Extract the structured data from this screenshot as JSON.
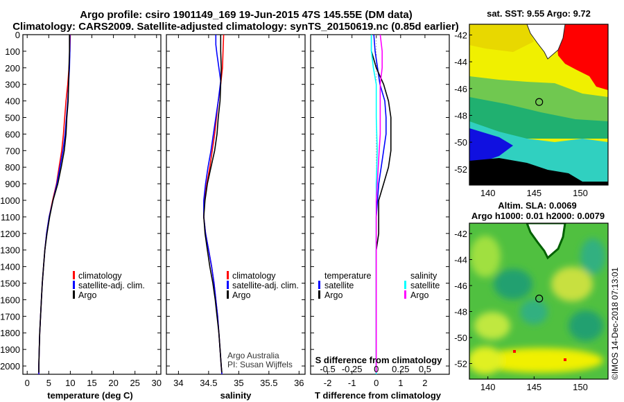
{
  "header": {
    "title_line1": "Argo profile: csiro 1901149_169 19-Jun-2015 47S 145.55E (DM data)",
    "title_line2": "Climatology: CARS2009. Satellite-adjusted climatology: synTS_20150619.nc (0.85d earlier)"
  },
  "map_top": {
    "title": "sat. SST: 9.55 Argo: 9.72",
    "xticks": [
      140,
      145,
      150
    ],
    "yticks": [
      -42,
      -44,
      -46,
      -48,
      -50,
      -52
    ],
    "xlim": [
      138,
      153
    ],
    "ylim": [
      -53.2,
      -41.2
    ],
    "marker": {
      "lon": 145.55,
      "lat": -47
    }
  },
  "map_bottom": {
    "title1": "Altim. SLA: 0.0069",
    "title2": "Argo h1000: 0.01 h2000: 0.0079",
    "xticks": [
      140,
      145,
      150
    ],
    "yticks": [
      -42,
      -44,
      -46,
      -48,
      -50,
      -52
    ],
    "xlim": [
      138,
      153
    ],
    "ylim": [
      -53.2,
      -41.2
    ],
    "marker": {
      "lon": 145.55,
      "lat": -47
    }
  },
  "credit": {
    "line1": "Argo Australia",
    "line2": "PI: Susan Wijffels",
    "watermark": "©IMOS 14-Dec-2018 07:13:01"
  },
  "colors": {
    "climatology": "#ff0000",
    "satellite": "#0000ff",
    "argo": "#000000",
    "sal_satellite": "#00ffff",
    "sal_argo": "#ff00ff"
  },
  "chart_data": [
    {
      "type": "line",
      "xlabel": "temperature (deg C)",
      "ylabel": "",
      "xlim": [
        -1,
        31
      ],
      "ylim": [
        2050,
        0
      ],
      "xticks": [
        0,
        5,
        10,
        15,
        20,
        25,
        30
      ],
      "yticks": [
        0,
        100,
        200,
        300,
        400,
        500,
        600,
        700,
        800,
        900,
        1000,
        1100,
        1200,
        1300,
        1400,
        1500,
        1600,
        1700,
        1800,
        1900,
        2000
      ],
      "legend": [
        "climatology",
        "satellite-adj. clim.",
        "Argo"
      ],
      "series": [
        {
          "name": "climatology",
          "color": "#ff0000",
          "points": [
            [
              10.0,
              0
            ],
            [
              9.9,
              100
            ],
            [
              9.7,
              200
            ],
            [
              9.4,
              300
            ],
            [
              9.0,
              400
            ],
            [
              8.7,
              500
            ],
            [
              8.4,
              600
            ],
            [
              8.0,
              700
            ],
            [
              7.4,
              800
            ],
            [
              6.8,
              900
            ],
            [
              5.9,
              1000
            ],
            [
              5.1,
              1100
            ],
            [
              4.5,
              1200
            ],
            [
              4.1,
              1300
            ],
            [
              3.8,
              1400
            ],
            [
              3.5,
              1500
            ],
            [
              3.3,
              1600
            ],
            [
              3.1,
              1700
            ],
            [
              2.9,
              1800
            ],
            [
              2.8,
              1900
            ],
            [
              2.7,
              2000
            ],
            [
              2.7,
              2050
            ]
          ]
        },
        {
          "name": "satellite-adj. clim.",
          "color": "#0000ff",
          "points": [
            [
              9.9,
              0
            ],
            [
              9.9,
              100
            ],
            [
              9.8,
              200
            ],
            [
              9.6,
              300
            ],
            [
              9.4,
              400
            ],
            [
              9.1,
              500
            ],
            [
              8.8,
              600
            ],
            [
              8.3,
              700
            ],
            [
              7.6,
              800
            ],
            [
              6.9,
              900
            ],
            [
              6.0,
              1000
            ],
            [
              5.1,
              1100
            ],
            [
              4.5,
              1200
            ],
            [
              4.1,
              1300
            ],
            [
              3.8,
              1400
            ],
            [
              3.5,
              1500
            ],
            [
              3.3,
              1600
            ],
            [
              3.1,
              1700
            ],
            [
              2.9,
              1800
            ],
            [
              2.8,
              1900
            ],
            [
              2.7,
              2000
            ],
            [
              2.7,
              2050
            ]
          ]
        },
        {
          "name": "Argo",
          "color": "#000000",
          "points": [
            [
              9.8,
              0
            ],
            [
              9.8,
              100
            ],
            [
              9.7,
              200
            ],
            [
              9.6,
              300
            ],
            [
              9.5,
              400
            ],
            [
              9.2,
              500
            ],
            [
              9.0,
              600
            ],
            [
              8.6,
              700
            ],
            [
              7.9,
              800
            ],
            [
              7.1,
              900
            ],
            [
              6.0,
              1000
            ],
            [
              5.2,
              1100
            ],
            [
              4.6,
              1200
            ],
            [
              4.1,
              1300
            ],
            [
              3.8,
              1400
            ],
            [
              3.5,
              1500
            ],
            [
              3.3,
              1600
            ],
            [
              3.1,
              1700
            ],
            [
              2.9,
              1800
            ],
            [
              2.8,
              1900
            ],
            [
              2.7,
              2000
            ],
            [
              2.7,
              2040
            ]
          ]
        }
      ]
    },
    {
      "type": "line",
      "xlabel": "salinity",
      "ylabel": "",
      "xlim": [
        33.8,
        36.1
      ],
      "ylim": [
        2050,
        0
      ],
      "xticks": [
        34,
        34.5,
        35,
        35.5,
        36
      ],
      "legend": [
        "climatology",
        "satellite-adj. clim.",
        "Argo"
      ],
      "series": [
        {
          "name": "climatology",
          "color": "#ff0000",
          "points": [
            [
              34.75,
              0
            ],
            [
              34.74,
              100
            ],
            [
              34.73,
              200
            ],
            [
              34.7,
              300
            ],
            [
              34.66,
              400
            ],
            [
              34.63,
              500
            ],
            [
              34.6,
              600
            ],
            [
              34.56,
              700
            ],
            [
              34.52,
              800
            ],
            [
              34.47,
              900
            ],
            [
              34.43,
              1000
            ],
            [
              34.42,
              1100
            ],
            [
              34.45,
              1200
            ],
            [
              34.5,
              1300
            ],
            [
              34.55,
              1400
            ],
            [
              34.59,
              1500
            ],
            [
              34.62,
              1600
            ],
            [
              34.65,
              1700
            ],
            [
              34.67,
              1800
            ],
            [
              34.69,
              1900
            ],
            [
              34.71,
              2000
            ],
            [
              34.72,
              2050
            ]
          ]
        },
        {
          "name": "satellite-adj. clim.",
          "color": "#0000ff",
          "points": [
            [
              34.62,
              0
            ],
            [
              34.62,
              60
            ],
            [
              34.64,
              120
            ],
            [
              34.67,
              200
            ],
            [
              34.7,
              280
            ],
            [
              34.66,
              400
            ],
            [
              34.62,
              500
            ],
            [
              34.58,
              600
            ],
            [
              34.54,
              700
            ],
            [
              34.49,
              800
            ],
            [
              34.45,
              900
            ],
            [
              34.42,
              1000
            ],
            [
              34.42,
              1100
            ],
            [
              34.45,
              1200
            ],
            [
              34.5,
              1300
            ],
            [
              34.55,
              1400
            ],
            [
              34.59,
              1500
            ],
            [
              34.62,
              1600
            ],
            [
              34.65,
              1700
            ],
            [
              34.67,
              1800
            ],
            [
              34.69,
              1900
            ],
            [
              34.71,
              2000
            ],
            [
              34.72,
              2050
            ]
          ]
        },
        {
          "name": "Argo",
          "color": "#000000",
          "points": [
            [
              34.7,
              0
            ],
            [
              34.7,
              100
            ],
            [
              34.71,
              200
            ],
            [
              34.7,
              300
            ],
            [
              34.69,
              400
            ],
            [
              34.66,
              500
            ],
            [
              34.64,
              600
            ],
            [
              34.6,
              700
            ],
            [
              34.54,
              800
            ],
            [
              34.48,
              900
            ],
            [
              34.44,
              1000
            ],
            [
              34.42,
              1100
            ],
            [
              34.44,
              1200
            ],
            [
              34.48,
              1300
            ],
            [
              34.52,
              1400
            ],
            [
              34.57,
              1500
            ],
            [
              34.61,
              1600
            ],
            [
              34.64,
              1700
            ],
            [
              34.67,
              1800
            ],
            [
              34.69,
              1900
            ],
            [
              34.71,
              2000
            ],
            [
              34.72,
              2040
            ]
          ]
        }
      ]
    },
    {
      "type": "line",
      "xlabel": "T difference from climatology",
      "ylabel": "",
      "xlim": [
        -2.7,
        3.0
      ],
      "ylim": [
        2050,
        0
      ],
      "xticks": [
        -2,
        -1,
        0,
        1,
        2
      ],
      "second_axis_title": "S difference from climatology",
      "second_axis_ticks": [
        "-0.5",
        "-0.25",
        "0",
        "0.25",
        "0.5"
      ],
      "legend_left": {
        "title": "temperature",
        "items": [
          "satellite",
          "Argo"
        ]
      },
      "legend_right": {
        "title": "salinity",
        "items": [
          "satellite",
          "Argo"
        ]
      },
      "series": [
        {
          "name": "satellite",
          "group": "temperature",
          "color": "#0000ff",
          "points": [
            [
              -0.1,
              0
            ],
            [
              -0.05,
              100
            ],
            [
              0.05,
              200
            ],
            [
              0.15,
              300
            ],
            [
              0.35,
              400
            ],
            [
              0.4,
              500
            ],
            [
              0.4,
              600
            ],
            [
              0.3,
              700
            ],
            [
              0.2,
              800
            ],
            [
              0.1,
              900
            ],
            [
              0.05,
              1000
            ],
            [
              0.0,
              1100
            ],
            [
              0.0,
              1200
            ],
            [
              0.0,
              1300
            ],
            [
              0.0,
              1500
            ],
            [
              0.0,
              1800
            ],
            [
              0.0,
              2050
            ]
          ]
        },
        {
          "name": "Argo",
          "group": "temperature",
          "color": "#000000",
          "points": [
            [
              -0.2,
              0
            ],
            [
              -0.2,
              100
            ],
            [
              0.0,
              200
            ],
            [
              0.3,
              300
            ],
            [
              0.5,
              400
            ],
            [
              0.6,
              500
            ],
            [
              0.6,
              600
            ],
            [
              0.6,
              700
            ],
            [
              0.5,
              800
            ],
            [
              0.3,
              900
            ],
            [
              0.1,
              1000
            ],
            [
              0.1,
              1100
            ],
            [
              0.1,
              1200
            ],
            [
              0.0,
              1300
            ],
            [
              0.0,
              1500
            ],
            [
              0.0,
              1800
            ],
            [
              0.0,
              2040
            ]
          ]
        },
        {
          "name": "satellite",
          "group": "salinity",
          "color": "#00ffff",
          "points": [
            [
              -0.05,
              0
            ],
            [
              -0.05,
              100
            ],
            [
              -0.03,
              200
            ],
            [
              0.0,
              300
            ],
            [
              0.0,
              500
            ],
            [
              0.01,
              700
            ],
            [
              0.0,
              900
            ],
            [
              0.0,
              1100
            ],
            [
              0.0,
              1300
            ],
            [
              0.0,
              1500
            ],
            [
              0.0,
              1800
            ],
            [
              0.0,
              2050
            ]
          ]
        },
        {
          "name": "Argo",
          "group": "salinity",
          "color": "#ff00ff",
          "points": [
            [
              0.04,
              0
            ],
            [
              0.06,
              100
            ],
            [
              0.06,
              200
            ],
            [
              0.04,
              300
            ],
            [
              0.04,
              400
            ],
            [
              0.04,
              500
            ],
            [
              0.04,
              600
            ],
            [
              0.03,
              700
            ],
            [
              0.02,
              800
            ],
            [
              0.01,
              900
            ],
            [
              0.0,
              1000
            ],
            [
              0.0,
              1200
            ],
            [
              0.0,
              1500
            ],
            [
              0.0,
              1800
            ],
            [
              0.0,
              2040
            ]
          ]
        }
      ]
    }
  ]
}
